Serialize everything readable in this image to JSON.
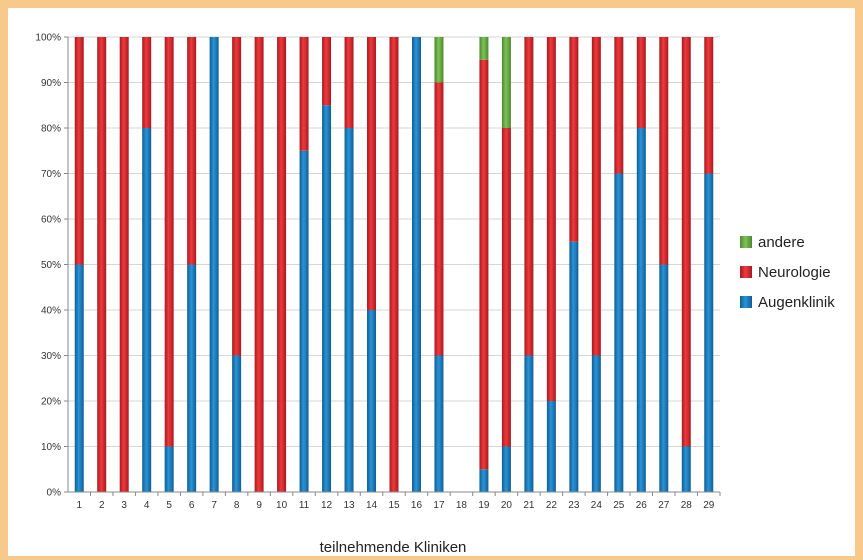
{
  "chart_data": {
    "type": "bar",
    "stacked": true,
    "percent": true,
    "categories": [
      "1",
      "2",
      "3",
      "4",
      "5",
      "6",
      "7",
      "8",
      "9",
      "10",
      "11",
      "12",
      "13",
      "14",
      "15",
      "16",
      "17",
      "18",
      "19",
      "20",
      "21",
      "22",
      "23",
      "24",
      "25",
      "26",
      "27",
      "28",
      "29"
    ],
    "series": [
      {
        "name": "Augenklinik",
        "color": "#1a7bbf",
        "values": [
          50,
          0,
          0,
          80,
          10,
          50,
          100,
          30,
          0,
          0,
          75,
          85,
          80,
          40,
          0,
          100,
          30,
          0,
          5,
          10,
          30,
          20,
          55,
          30,
          70,
          80,
          50,
          10,
          70
        ]
      },
      {
        "name": "Neurologie",
        "color": "#d9262b",
        "values": [
          50,
          100,
          100,
          20,
          90,
          50,
          0,
          70,
          100,
          100,
          25,
          15,
          20,
          60,
          100,
          0,
          60,
          0,
          90,
          70,
          70,
          80,
          45,
          70,
          30,
          20,
          50,
          90,
          30
        ]
      },
      {
        "name": "andere",
        "color": "#5fa83b",
        "values": [
          0,
          0,
          0,
          0,
          0,
          0,
          0,
          0,
          0,
          0,
          0,
          0,
          0,
          0,
          0,
          0,
          10,
          0,
          5,
          20,
          0,
          0,
          0,
          0,
          0,
          0,
          0,
          0,
          0
        ]
      }
    ],
    "yticks": [
      "0%",
      "10%",
      "20%",
      "30%",
      "40%",
      "50%",
      "60%",
      "70%",
      "80%",
      "90%",
      "100%"
    ],
    "ylim": [
      0,
      100
    ],
    "xlabel": "teilnehmende Kliniken",
    "ylabel": "",
    "grid": true,
    "legend_position": "right"
  }
}
